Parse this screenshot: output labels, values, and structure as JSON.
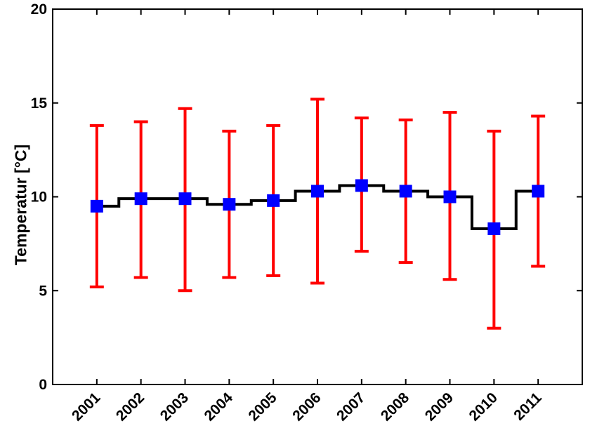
{
  "chart_data": {
    "type": "line",
    "subtype": "stairs-with-error-bars",
    "title": "",
    "xlabel": "",
    "ylabel": "Temperatur [°C]",
    "x": [
      2001,
      2002,
      2003,
      2004,
      2005,
      2006,
      2007,
      2008,
      2009,
      2010,
      2011
    ],
    "series": [
      {
        "name": "temperature_mean",
        "values": [
          9.5,
          9.9,
          9.9,
          9.6,
          9.8,
          10.3,
          10.6,
          10.3,
          10.0,
          8.3,
          10.3
        ]
      },
      {
        "name": "error_bar_upper",
        "values": [
          13.8,
          14.0,
          14.7,
          13.5,
          13.8,
          15.2,
          14.2,
          14.1,
          14.5,
          13.5,
          14.3
        ]
      },
      {
        "name": "error_bar_lower",
        "values": [
          5.2,
          5.7,
          5.0,
          5.7,
          5.8,
          5.4,
          7.1,
          6.5,
          5.6,
          3.0,
          6.3
        ]
      }
    ],
    "xlim": [
      2000,
      2012
    ],
    "ylim": [
      0,
      20
    ],
    "xticks": [
      2001,
      2002,
      2003,
      2004,
      2005,
      2006,
      2007,
      2008,
      2009,
      2010,
      2011
    ],
    "yticks": [
      0,
      5,
      10,
      15,
      20
    ],
    "xtick_rotation_deg": 45,
    "grid": false,
    "legend": "none",
    "marker_shape": "square",
    "colors": {
      "marker": "#0000ff",
      "error_bar": "#ff0000",
      "step_line": "#000000",
      "axis": "#000000",
      "text": "#000000",
      "background": "#ffffff"
    }
  }
}
